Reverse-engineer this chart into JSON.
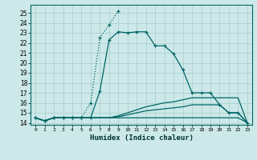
{
  "title": "",
  "xlabel": "Humidex (Indice chaleur)",
  "ylabel": "",
  "background_color": "#cce8e8",
  "grid_color": "#aacccc",
  "line_color": "#006666",
  "xlim": [
    -0.5,
    23.5
  ],
  "ylim": [
    13.8,
    25.8
  ],
  "yticks": [
    14,
    15,
    16,
    17,
    18,
    19,
    20,
    21,
    22,
    23,
    24,
    25
  ],
  "xticks": [
    0,
    1,
    2,
    3,
    4,
    5,
    6,
    7,
    8,
    9,
    10,
    11,
    12,
    13,
    14,
    15,
    16,
    17,
    18,
    19,
    20,
    21,
    22,
    23
  ],
  "curves": [
    {
      "x": [
        0,
        1,
        2,
        3,
        4,
        5,
        6,
        7,
        8,
        9,
        10,
        11,
        12,
        13,
        14,
        15,
        16,
        17,
        18,
        19,
        20,
        21,
        22,
        23
      ],
      "y": [
        14.5,
        14.2,
        14.5,
        14.5,
        14.5,
        14.5,
        14.5,
        17.2,
        22.3,
        23.1,
        23.0,
        23.1,
        23.1,
        21.7,
        21.7,
        20.9,
        19.3,
        17.0,
        17.0,
        17.0,
        15.8,
        15.0,
        15.0,
        14.0
      ],
      "style": "-",
      "marker": "+"
    },
    {
      "x": [
        0,
        1,
        2,
        3,
        4,
        5,
        6,
        7,
        8,
        9
      ],
      "y": [
        14.5,
        14.2,
        14.5,
        14.5,
        14.5,
        14.5,
        16.0,
        22.5,
        23.8,
        25.2
      ],
      "style": ":",
      "marker": "+"
    },
    {
      "x": [
        0,
        1,
        2,
        3,
        4,
        5,
        6,
        7,
        8,
        9,
        10,
        11,
        12,
        13,
        14,
        15,
        16,
        17,
        18,
        19,
        20,
        21,
        22,
        23
      ],
      "y": [
        14.5,
        14.2,
        14.5,
        14.5,
        14.5,
        14.5,
        14.5,
        14.5,
        14.5,
        14.7,
        15.0,
        15.3,
        15.6,
        15.8,
        16.0,
        16.1,
        16.3,
        16.5,
        16.5,
        16.5,
        16.5,
        16.5,
        16.5,
        14.0
      ],
      "style": "-",
      "marker": null
    },
    {
      "x": [
        0,
        1,
        2,
        3,
        4,
        5,
        6,
        7,
        8,
        9,
        10,
        11,
        12,
        13,
        14,
        15,
        16,
        17,
        18,
        19,
        20,
        21,
        22,
        23
      ],
      "y": [
        14.5,
        14.2,
        14.5,
        14.5,
        14.5,
        14.5,
        14.5,
        14.5,
        14.5,
        14.5,
        14.5,
        14.5,
        14.5,
        14.5,
        14.5,
        14.5,
        14.5,
        14.5,
        14.5,
        14.5,
        14.5,
        14.5,
        14.5,
        14.0
      ],
      "style": "-",
      "marker": null
    },
    {
      "x": [
        0,
        1,
        2,
        3,
        4,
        5,
        6,
        7,
        8,
        9,
        10,
        11,
        12,
        13,
        14,
        15,
        16,
        17,
        18,
        19,
        20,
        21,
        22,
        23
      ],
      "y": [
        14.5,
        14.2,
        14.5,
        14.5,
        14.5,
        14.5,
        14.5,
        14.5,
        14.5,
        14.6,
        14.8,
        15.0,
        15.2,
        15.3,
        15.4,
        15.5,
        15.6,
        15.8,
        15.8,
        15.8,
        15.8,
        15.0,
        15.0,
        14.0
      ],
      "style": "-",
      "marker": null
    }
  ]
}
